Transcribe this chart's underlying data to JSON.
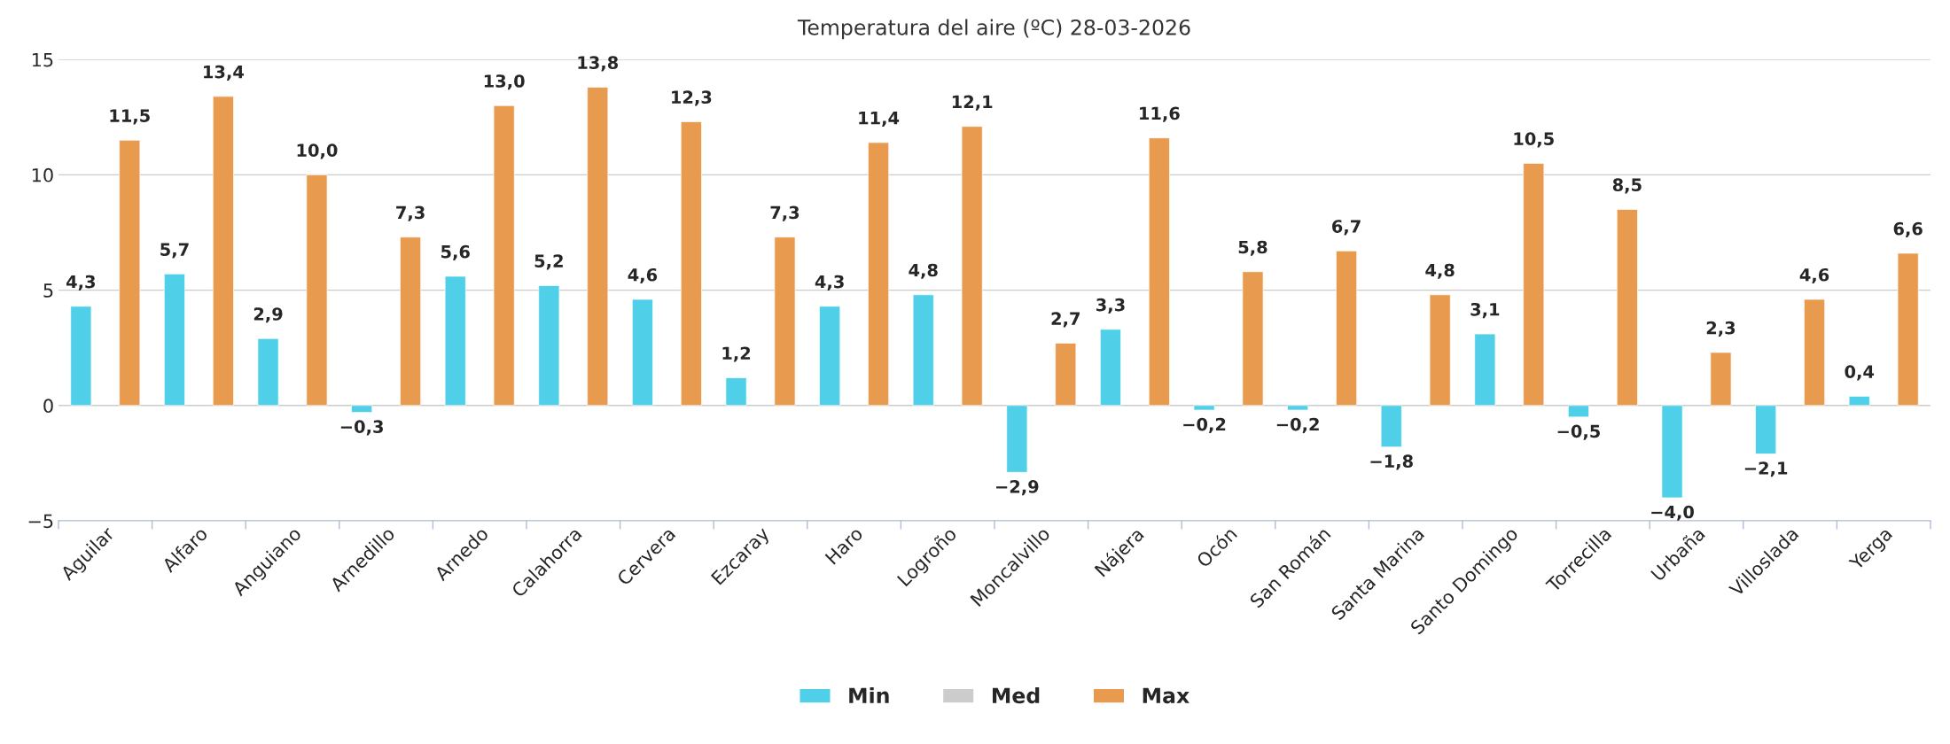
{
  "chart_data": {
    "type": "bar",
    "title": "Temperatura del aire (ºC) 28-03-2026",
    "categories": [
      "Aguilar",
      "Alfaro",
      "Anguiano",
      "Arnedillo",
      "Arnedo",
      "Calahorra",
      "Cervera",
      "Ezcaray",
      "Haro",
      "Logroño",
      "Moncalvillo",
      "Nájera",
      "Ocón",
      "San Román",
      "Santa Marina",
      "Santo Domingo",
      "Torrecilla",
      "Urbaña",
      "Villoslada",
      "Yerga"
    ],
    "series": [
      {
        "name": "Min",
        "color": "#4fcfe8",
        "values": [
          4.3,
          5.7,
          2.9,
          -0.3,
          5.6,
          5.2,
          4.6,
          1.2,
          4.3,
          4.8,
          -2.9,
          3.3,
          -0.2,
          -0.2,
          -1.8,
          3.1,
          -0.5,
          -4.0,
          -2.1,
          0.4
        ],
        "value_labels": [
          "4,3",
          "5,7",
          "2,9",
          "−0,3",
          "5,6",
          "5,2",
          "4,6",
          "1,2",
          "4,3",
          "4,8",
          "−2,9",
          "3,3",
          "−0,2",
          "−0,2",
          "−1,8",
          "3,1",
          "−0,5",
          "−4,0",
          "−2,1",
          "0,4"
        ]
      },
      {
        "name": "Med",
        "color": "#cccccc",
        "values": [
          null,
          null,
          null,
          null,
          null,
          null,
          null,
          null,
          null,
          null,
          null,
          null,
          null,
          null,
          null,
          null,
          null,
          null,
          null,
          null
        ]
      },
      {
        "name": "Max",
        "color": "#e89a4e",
        "values": [
          11.5,
          13.4,
          10.0,
          7.3,
          13.0,
          13.8,
          12.3,
          7.3,
          11.4,
          12.1,
          2.7,
          11.6,
          5.8,
          6.7,
          4.8,
          10.5,
          8.5,
          2.3,
          4.6,
          6.6
        ],
        "value_labels": [
          "11,5",
          "13,4",
          "10,0",
          "7,3",
          "13,0",
          "13,8",
          "12,3",
          "7,3",
          "11,4",
          "12,1",
          "2,7",
          "11,6",
          "5,8",
          "6,7",
          "4,8",
          "10,5",
          "8,5",
          "2,3",
          "4,6",
          "6,6"
        ]
      }
    ],
    "ylim": [
      -5,
      15
    ],
    "yticks": [
      {
        "value": -5,
        "label": "−5"
      },
      0,
      5,
      10,
      15
    ],
    "grid": "y",
    "legend": "bottom"
  }
}
